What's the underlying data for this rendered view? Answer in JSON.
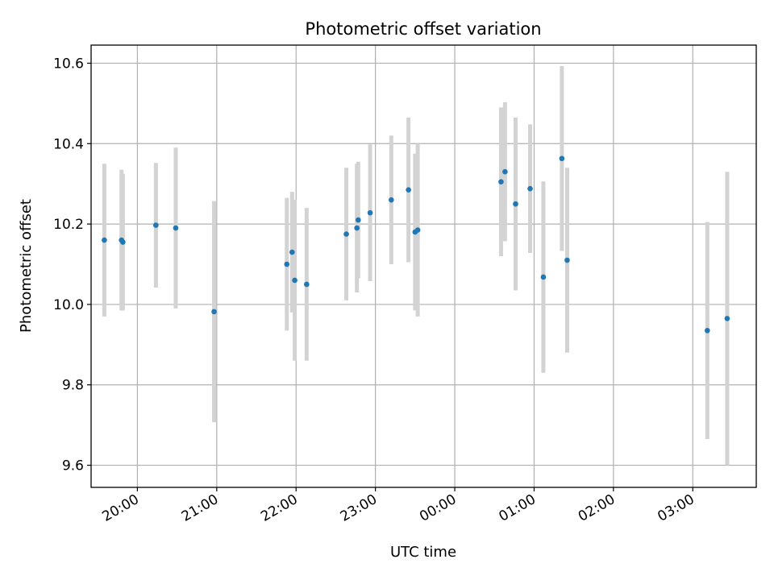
{
  "chart_data": {
    "type": "scatter",
    "title": "Photometric offset variation",
    "xlabel": "UTC time",
    "ylabel": "Photometric offset",
    "x_start": "2021-03-01 19:25",
    "x_end": "2021-03-02 03:48",
    "ylim": [
      9.545,
      10.645
    ],
    "grid": true,
    "x_tick_values": [
      "2021-03-01 20:00",
      "2021-03-01 21:00",
      "2021-03-01 22:00",
      "2021-03-01 23:00",
      "2021-03-02 00:00",
      "2021-03-02 01:00",
      "2021-03-02 02:00",
      "2021-03-02 03:00"
    ],
    "x_tick_labels": [
      "20:00",
      "21:00",
      "22:00",
      "23:00",
      "00:00",
      "01:00",
      "02:00",
      "03:00"
    ],
    "y_ticks": [
      9.6,
      9.8,
      10.0,
      10.2,
      10.4,
      10.6
    ],
    "y_tick_labels": [
      "9.6",
      "9.8",
      "10.0",
      "10.2",
      "10.4",
      "10.6"
    ],
    "point_color": "#1f77b4",
    "errorbar_color": "#d3d3d3",
    "points": [
      {
        "x": "2021-03-01 19:35",
        "y": 10.16,
        "err": 0.19
      },
      {
        "x": "2021-03-01 19:48",
        "y": 10.16,
        "err": 0.175
      },
      {
        "x": "2021-03-01 19:49",
        "y": 10.155,
        "err": 0.17
      },
      {
        "x": "2021-03-01 20:14",
        "y": 10.197,
        "err": 0.155
      },
      {
        "x": "2021-03-01 20:29",
        "y": 10.19,
        "err": 0.2
      },
      {
        "x": "2021-03-01 20:58",
        "y": 9.982,
        "err": 0.275
      },
      {
        "x": "2021-03-01 21:53",
        "y": 10.1,
        "err": 0.165
      },
      {
        "x": "2021-03-01 21:57",
        "y": 10.13,
        "err": 0.15
      },
      {
        "x": "2021-03-01 21:59",
        "y": 10.06,
        "err": 0.2
      },
      {
        "x": "2021-03-01 22:08",
        "y": 10.05,
        "err": 0.19
      },
      {
        "x": "2021-03-01 22:38",
        "y": 10.175,
        "err": 0.165
      },
      {
        "x": "2021-03-01 22:46",
        "y": 10.19,
        "err": 0.16
      },
      {
        "x": "2021-03-01 22:47",
        "y": 10.21,
        "err": 0.145
      },
      {
        "x": "2021-03-01 22:56",
        "y": 10.228,
        "err": 0.17
      },
      {
        "x": "2021-03-01 23:12",
        "y": 10.26,
        "err": 0.16
      },
      {
        "x": "2021-03-01 23:25",
        "y": 10.285,
        "err": 0.18
      },
      {
        "x": "2021-03-01 23:30",
        "y": 10.18,
        "err": 0.195
      },
      {
        "x": "2021-03-01 23:32",
        "y": 10.185,
        "err": 0.215
      },
      {
        "x": "2021-03-02 00:35",
        "y": 10.305,
        "err": 0.185
      },
      {
        "x": "2021-03-02 00:38",
        "y": 10.33,
        "err": 0.173
      },
      {
        "x": "2021-03-02 00:46",
        "y": 10.25,
        "err": 0.215
      },
      {
        "x": "2021-03-02 00:57",
        "y": 10.288,
        "err": 0.16
      },
      {
        "x": "2021-03-02 01:07",
        "y": 10.068,
        "err": 0.238
      },
      {
        "x": "2021-03-02 01:21",
        "y": 10.363,
        "err": 0.23
      },
      {
        "x": "2021-03-02 01:25",
        "y": 10.11,
        "err": 0.23
      },
      {
        "x": "2021-03-02 03:11",
        "y": 9.935,
        "err": 0.27
      },
      {
        "x": "2021-03-02 03:26",
        "y": 9.965,
        "err": 0.365
      }
    ]
  }
}
